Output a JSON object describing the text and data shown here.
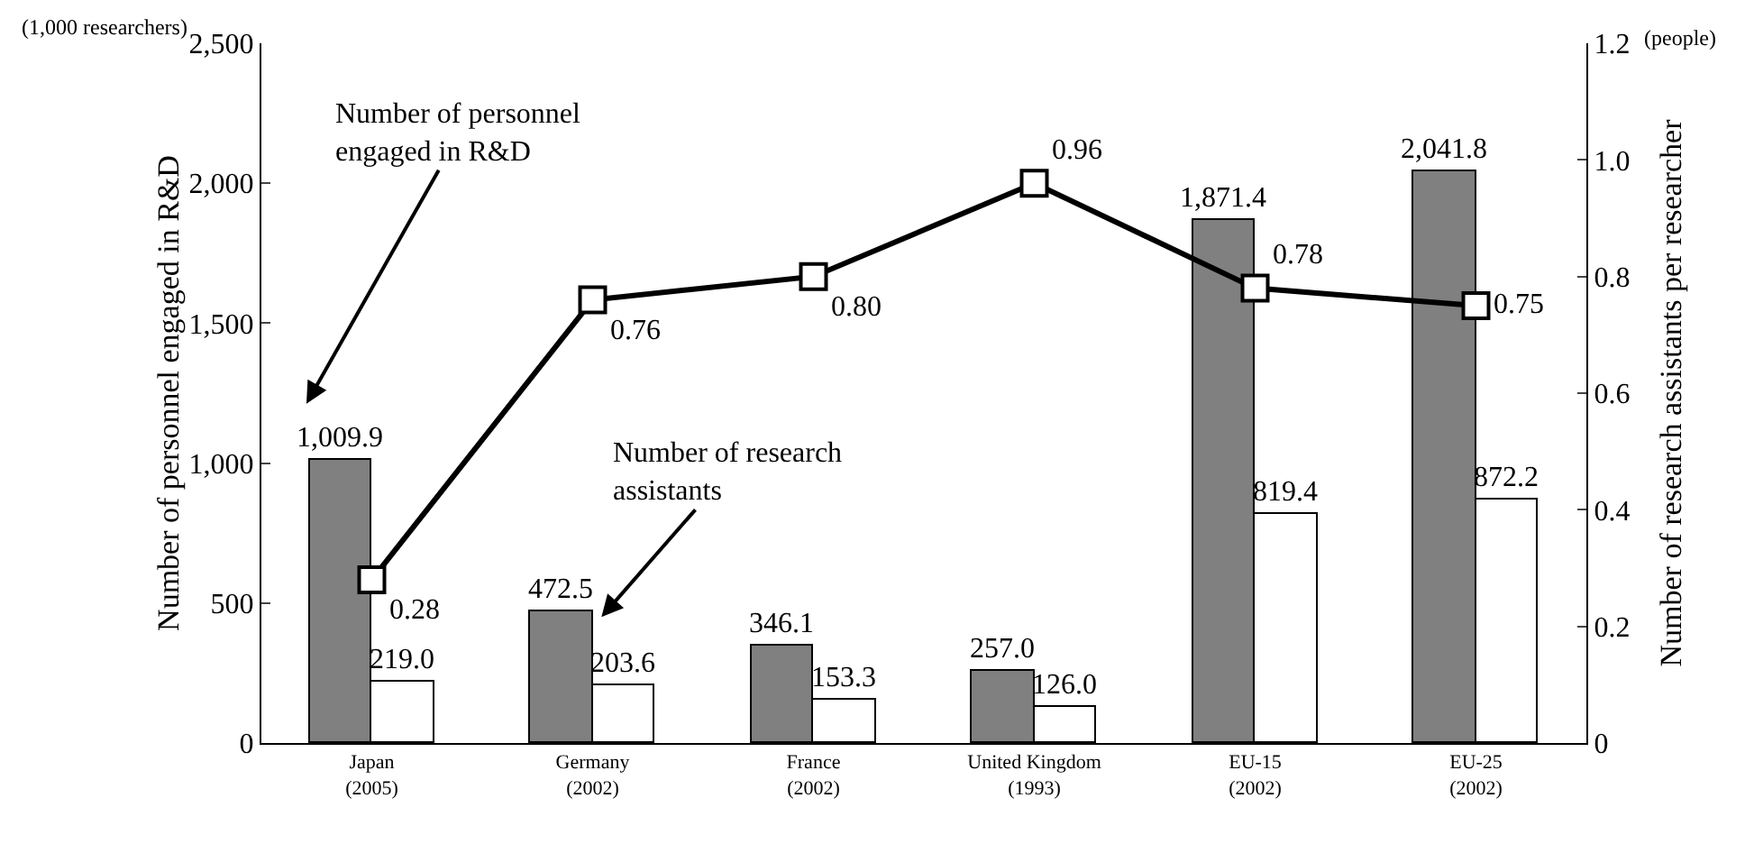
{
  "chart_data": {
    "type": "bar",
    "categories": [
      "Japan\n(2005)",
      "Germany\n(2002)",
      "France\n(2002)",
      "United Kingdom\n(1993)",
      "EU-15\n(2002)",
      "EU-25\n(2002)"
    ],
    "ylabel": "Number of personnel engaged in R&D",
    "y2label": "Number of research assistants per researcher",
    "series": [
      {
        "color": "#808080",
        "values": [
          1009.9,
          472.5,
          346.1,
          257.0,
          1871.4,
          2041.8
        ],
        "value_labels": [
          "1,009.9",
          "472.5",
          "346.1",
          "257.0",
          "1,871.4",
          "2,041.8"
        ]
      },
      {
        "color": "#ffffff",
        "values": [
          219.0,
          203.6,
          153.3,
          126.0,
          819.4,
          872.2
        ],
        "value_labels": [
          "219.0",
          "203.6",
          "153.3",
          "126.0",
          "819.4",
          "872.2"
        ]
      },
      {
        "type": "line",
        "axis": "y2",
        "color": "#000000",
        "values": [
          0.28,
          0.76,
          0.8,
          0.96,
          0.78,
          0.75
        ],
        "value_labels": [
          "0.28",
          "0.76",
          "0.80",
          "0.96",
          "0.78",
          "0.75"
        ]
      }
    ],
    "ylim": [
      0,
      2500
    ],
    "yticks": [
      0,
      {
        "value": 500,
        "label": "500"
      },
      {
        "value": 1000,
        "label": "1,000"
      },
      {
        "value": 1500,
        "label": "1,500"
      },
      {
        "value": 2000,
        "label": "2,000"
      },
      {
        "value": 2500,
        "label": "2,500"
      }
    ],
    "y2lim": [
      0,
      1.2
    ],
    "y2ticks": [
      0,
      0.2,
      0.4,
      0.6,
      0.8,
      {
        "value": 1.0,
        "label": "1.0"
      },
      {
        "value": 1.2,
        "label": "1.2"
      }
    ],
    "marker": "square",
    "grid": false,
    "annotations": [
      "(1,000 researchers)",
      "(people)",
      "Number of personnel\nengaged in R&D",
      {
        "text": "Number of research\nassistants",
        "x": "Germany\n(2002)",
        "y": 450
      }
    ]
  }
}
